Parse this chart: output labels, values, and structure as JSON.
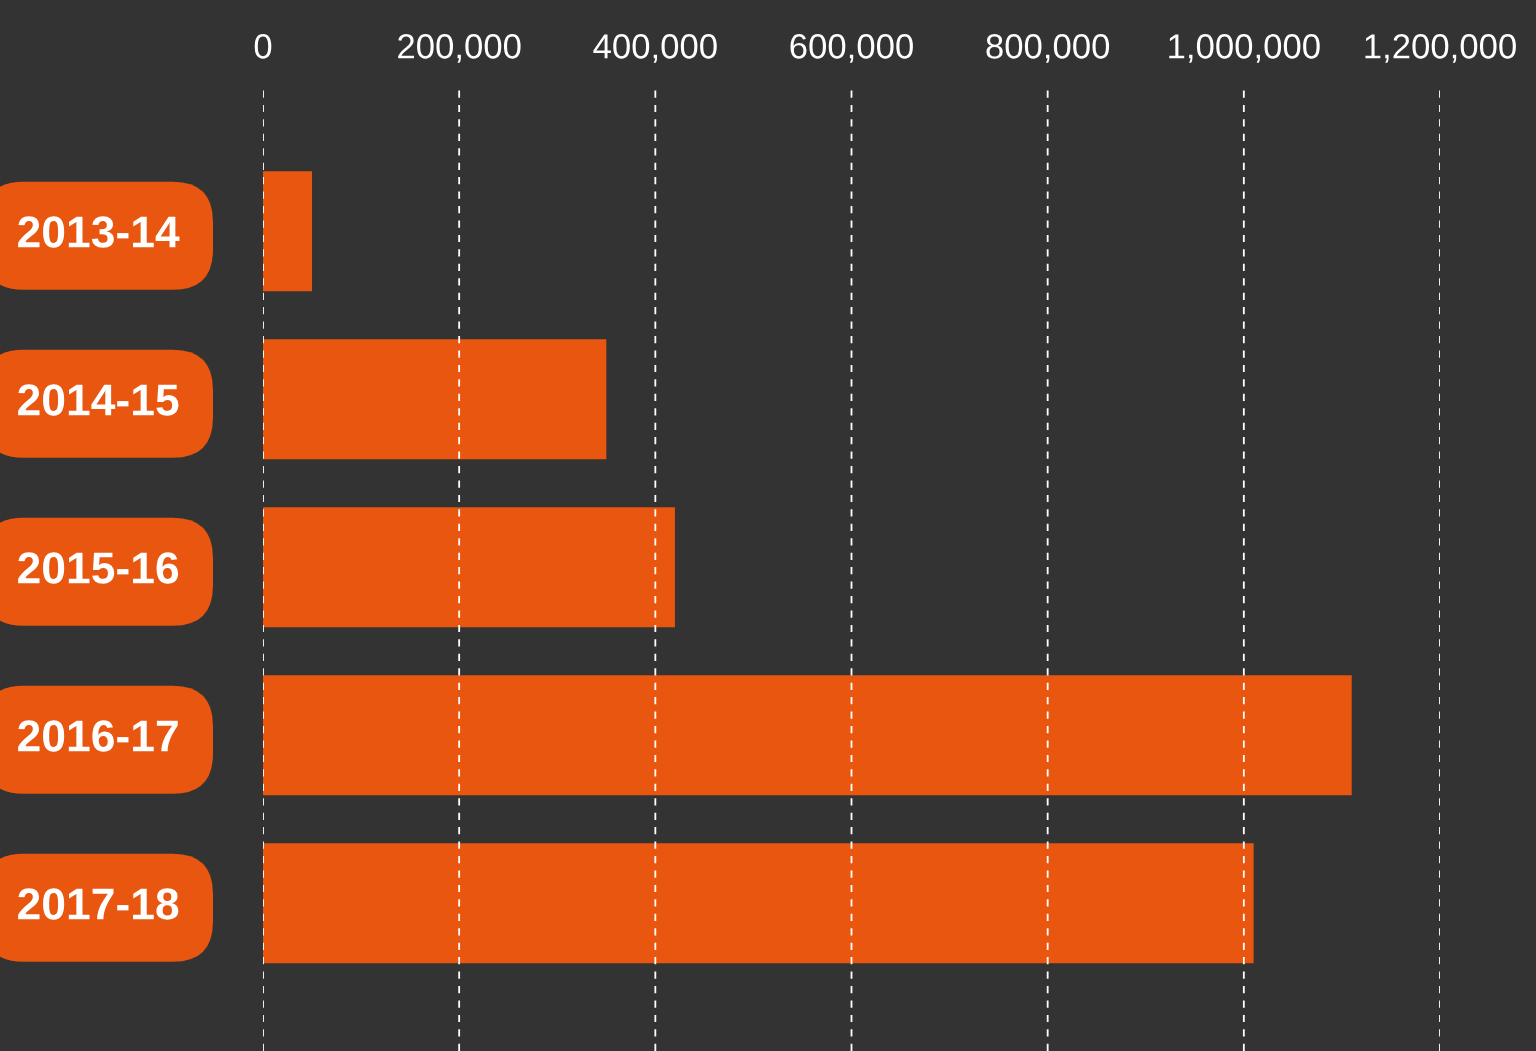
{
  "chart_data": {
    "type": "bar",
    "orientation": "horizontal",
    "categories": [
      "2013-14",
      "2014-15",
      "2015-16",
      "2016-17",
      "2017-18"
    ],
    "values": [
      50000,
      350000,
      420000,
      1110000,
      1010000
    ],
    "color": "#e8560f",
    "xlim": [
      0,
      1200000
    ],
    "xticks": [
      0,
      {
        "value": 200000,
        "label": "200,000"
      },
      {
        "value": 400000,
        "label": "400,000"
      },
      {
        "value": 600000,
        "label": "600,000"
      },
      {
        "value": 800000,
        "label": "800,000"
      },
      {
        "value": 1000000,
        "label": "1,000,000"
      },
      {
        "value": 1200000,
        "label": "1,200,000"
      }
    ],
    "grid": "x",
    "legend": false
  }
}
